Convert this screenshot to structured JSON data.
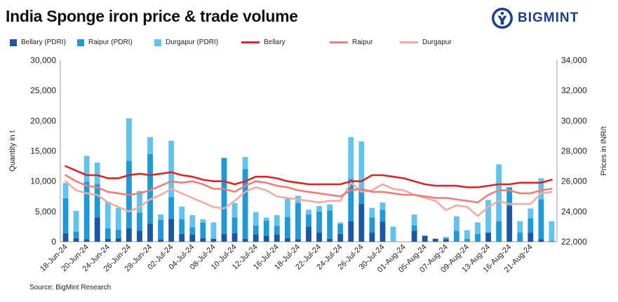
{
  "header": {
    "title": "India Sponge iron price & trade volume",
    "brand": "BIGMINT"
  },
  "source": "Source: BigMint Research",
  "colors": {
    "bellary_bar": "#1b57a3",
    "raipur_bar": "#1f9ad7",
    "durgapur_bar": "#62c3ee",
    "bellary_line": "#d6262a",
    "raipur_line": "#ee7e79",
    "durgapur_line": "#f3aaa2",
    "brand": "#1b3f8f"
  },
  "legend": [
    {
      "label": "Bellary (PDRI)",
      "kind": "bar",
      "color": "#1b57a3"
    },
    {
      "label": "Raipur (PDRI)",
      "kind": "bar",
      "color": "#1f9ad7"
    },
    {
      "label": "Durgapur (PDRI)",
      "kind": "bar",
      "color": "#62c3ee"
    },
    {
      "label": "Bellary",
      "kind": "line",
      "color": "#d6262a"
    },
    {
      "label": "Raipur",
      "kind": "line",
      "color": "#ee7e79"
    },
    {
      "label": "Durgapur",
      "kind": "line",
      "color": "#f3aaa2"
    }
  ],
  "chart_data": {
    "type": "bar",
    "title": "India Sponge iron price & trade volume",
    "ylabel": "Quantity in t",
    "y2label": "Prices in INR/t",
    "ylim": [
      0,
      30000
    ],
    "y2lim": [
      22000,
      34000
    ],
    "yticks": [
      "0",
      "5,000",
      "10,000",
      "15,000",
      "20,000",
      "25,000",
      "30,000"
    ],
    "y2ticks": [
      "22,000",
      "24,000",
      "26,000",
      "28,000",
      "30,000",
      "32,000",
      "34,000"
    ],
    "xticklabels": [
      "18-Jun-24",
      "20-Jun-24",
      "24-Jun-24",
      "26-Jun-24",
      "28-Jun-24",
      "02-Jul-24",
      "04-Jul-24",
      "08-Jul-24",
      "10-Jul-24",
      "12-Jul-24",
      "16-Jul-24",
      "18-Jul-24",
      "22-Jul-24",
      "24-Jul-24",
      "26-Jul-24",
      "30-Jul-24",
      "01-Aug-24",
      "05-Aug-24",
      "07-Aug-24",
      "09-Aug-24",
      "13-Aug-24",
      "16-Aug-24",
      "21-Aug-24"
    ],
    "label_every": 2,
    "grid": false,
    "legend_position": "top",
    "series": [
      {
        "name": "Bellary (PDRI)",
        "type": "bar",
        "stack": "volume",
        "values": [
          1400,
          600,
          400,
          4000,
          500,
          600,
          2200,
          1800,
          3000,
          400,
          3800,
          1300,
          1200,
          600,
          500,
          1300,
          1400,
          500,
          1200,
          1000,
          1200,
          600,
          400,
          2500,
          1500,
          500,
          1300,
          3400,
          6200,
          1500,
          3300,
          0,
          0,
          1800,
          1000,
          500,
          400,
          0,
          0,
          0,
          1500,
          0,
          5900,
          0,
          1500,
          400,
          0
        ]
      },
      {
        "name": "Raipur (PDRI)",
        "type": "bar",
        "stack": "volume",
        "values": [
          5800,
          1100,
          9500,
          5500,
          1700,
          1400,
          11200,
          3000,
          11500,
          3200,
          3600,
          2400,
          1200,
          2600,
          0,
          12500,
          2600,
          11500,
          1500,
          2500,
          1400,
          3500,
          6000,
          2000,
          3500,
          4700,
          1600,
          7000,
          2400,
          2500,
          2000,
          0,
          0,
          900,
          0,
          0,
          200,
          1800,
          500,
          1300,
          0,
          3400,
          3100,
          1500,
          2400,
          6600,
          200
        ]
      },
      {
        "name": "Durgapur (PDRI)",
        "type": "bar",
        "stack": "volume",
        "values": [
          2500,
          3400,
          4300,
          3600,
          4400,
          3600,
          7000,
          3600,
          2800,
          900,
          9300,
          2100,
          2000,
          500,
          2700,
          100,
          2400,
          2000,
          2200,
          500,
          1800,
          3000,
          1200,
          800,
          900,
          1000,
          300,
          6900,
          8000,
          1600,
          1200,
          2500,
          0,
          1800,
          0,
          0,
          200,
          2400,
          1400,
          1900,
          5400,
          9400,
          0,
          1900,
          1600,
          3500,
          3200
        ]
      },
      {
        "name": "Bellary",
        "type": "line",
        "axis": "y2",
        "values": [
          27000,
          26700,
          26400,
          26400,
          26200,
          26200,
          26400,
          26500,
          26400,
          26500,
          26600,
          26400,
          26300,
          26100,
          26000,
          26000,
          25800,
          26000,
          26300,
          26300,
          26200,
          26000,
          25900,
          25800,
          25800,
          25800,
          25800,
          26000,
          26000,
          26400,
          26400,
          26300,
          26200,
          26000,
          25800,
          25700,
          25700,
          25700,
          25600,
          25600,
          25700,
          25800,
          25800,
          25900,
          25900,
          25900,
          26100
        ]
      },
      {
        "name": "Raipur",
        "type": "line",
        "axis": "y2",
        "values": [
          26400,
          26000,
          25700,
          25600,
          25300,
          25200,
          25100,
          25200,
          25400,
          25700,
          26000,
          25900,
          26000,
          25800,
          25500,
          25500,
          25300,
          25700,
          26000,
          25900,
          25700,
          25600,
          25400,
          25300,
          25200,
          25100,
          25000,
          25400,
          25500,
          25300,
          25300,
          25200,
          25100,
          25100,
          25000,
          24900,
          24900,
          24800,
          24700,
          24600,
          25100,
          25400,
          25400,
          25200,
          25200,
          25400,
          25500
        ]
      },
      {
        "name": "Durgapur",
        "type": "line",
        "axis": "y2",
        "values": [
          26000,
          25400,
          25200,
          25100,
          24600,
          24300,
          24000,
          24300,
          24800,
          25100,
          25500,
          25200,
          24900,
          24600,
          24300,
          24200,
          24700,
          25300,
          25600,
          25400,
          25000,
          24900,
          24800,
          24700,
          24600,
          24700,
          24700,
          25900,
          25300,
          25400,
          25800,
          25500,
          25400,
          25100,
          24900,
          24700,
          24100,
          24400,
          24300,
          23700,
          24300,
          24700,
          24500,
          24500,
          24500,
          25200,
          25300
        ]
      }
    ]
  }
}
